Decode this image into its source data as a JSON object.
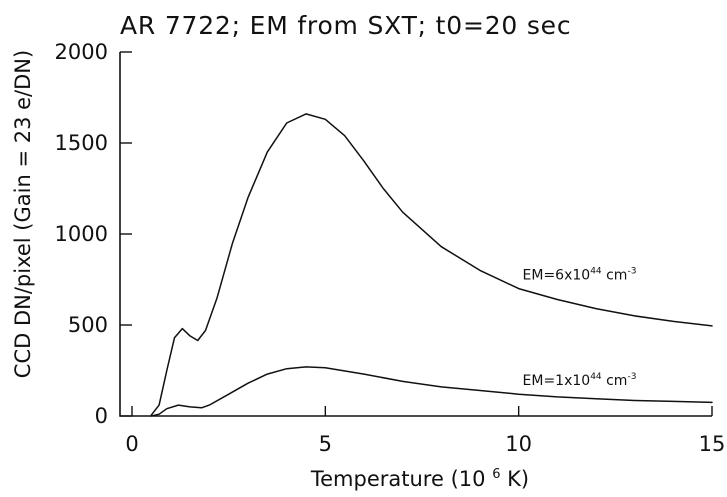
{
  "chart_data": {
    "type": "line",
    "title": "AR 7722; EM from SXT; t0=20 sec",
    "xlabel": "Temperature (10",
    "xlabel_sup": "6",
    "xlabel_suffix": " K)",
    "ylabel": "CCD DN/pixel (Gain = 23 e/DN)",
    "xlim": [
      0,
      15
    ],
    "ylim": [
      0,
      2000
    ],
    "x_ticks": [
      0,
      5,
      10,
      15
    ],
    "y_ticks": [
      0,
      500,
      1000,
      1500,
      2000
    ],
    "x_tick_labels": [
      "0",
      "5",
      "10",
      "15"
    ],
    "y_tick_labels": [
      "0",
      "500",
      "1000",
      "1500",
      "2000"
    ],
    "grid": false,
    "line_color": "#111111",
    "series": [
      {
        "x": [
          0.5,
          0.7,
          0.9,
          1.1,
          1.3,
          1.5,
          1.7,
          1.9,
          2.2,
          2.6,
          3.0,
          3.5,
          4.0,
          4.5,
          5.0,
          5.5,
          6.0,
          6.5,
          7.0,
          8.0,
          9.0,
          10.0,
          11.0,
          12.0,
          13.0,
          14.0,
          15.0
        ],
        "y": [
          5,
          60,
          250,
          430,
          480,
          440,
          415,
          470,
          650,
          950,
          1200,
          1450,
          1610,
          1660,
          1630,
          1540,
          1400,
          1250,
          1120,
          930,
          800,
          700,
          640,
          590,
          550,
          520,
          495
        ]
      },
      {
        "x": [
          0.5,
          0.7,
          0.9,
          1.2,
          1.5,
          1.8,
          2.0,
          2.5,
          3.0,
          3.5,
          4.0,
          4.5,
          5.0,
          6.0,
          7.0,
          8.0,
          9.0,
          10.0,
          11.0,
          12.0,
          13.0,
          14.0,
          15.0
        ],
        "y": [
          0,
          10,
          40,
          60,
          50,
          45,
          60,
          120,
          180,
          230,
          260,
          270,
          265,
          230,
          190,
          160,
          140,
          120,
          105,
          95,
          85,
          80,
          75
        ]
      }
    ],
    "annotations": [
      {
        "prefix": "EM=6x10",
        "exp": "44",
        "unit": " cm",
        "unit_exp": "-3",
        "x": 10.1,
        "y": 750
      },
      {
        "prefix": "EM=1x10",
        "exp": "44",
        "unit": " cm",
        "unit_exp": "-3",
        "x": 10.1,
        "y": 170
      }
    ]
  }
}
